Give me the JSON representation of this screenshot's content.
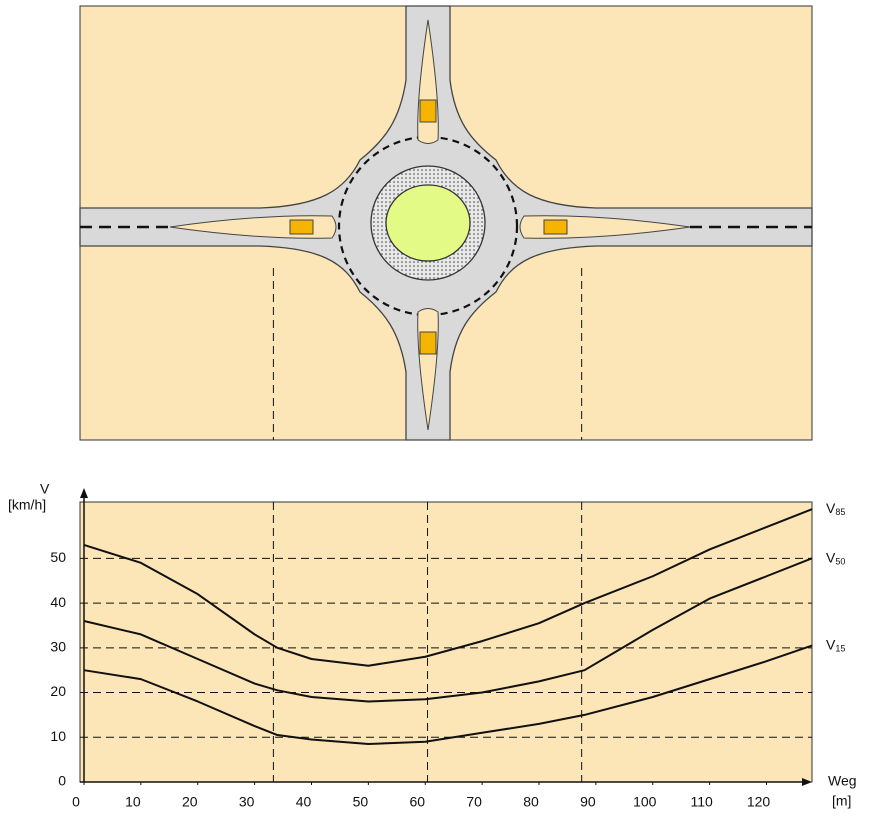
{
  "chart_data": {
    "type": "line",
    "y_label": "V",
    "y_unit": "[km/h]",
    "x_label": "Weg",
    "x_unit": "[m]",
    "x": [
      0,
      10,
      20,
      30,
      34,
      40,
      50,
      60,
      70,
      80,
      88,
      100,
      110,
      120,
      128
    ],
    "series": [
      {
        "name": "V85",
        "color": "#111111",
        "values": [
          53,
          49,
          42,
          33,
          30,
          27.5,
          26,
          28,
          31.5,
          35.5,
          40,
          46,
          52,
          57,
          61
        ]
      },
      {
        "name": "V50",
        "color": "#111111",
        "values": [
          36,
          33,
          27.5,
          22,
          20.5,
          19,
          18,
          18.5,
          20,
          22.5,
          25,
          34,
          41,
          46,
          50
        ]
      },
      {
        "name": "V15",
        "color": "#111111",
        "values": [
          25,
          23,
          18,
          12.5,
          10.5,
          9.5,
          8.5,
          9,
          11,
          13,
          15,
          19,
          23,
          27,
          30.5
        ]
      }
    ],
    "xlim": [
      0,
      128
    ],
    "ylim": [
      0,
      62.6
    ],
    "xticks": [
      0,
      10,
      20,
      30,
      40,
      50,
      60,
      70,
      80,
      90,
      100,
      110,
      120
    ],
    "yticks": [
      0,
      10,
      20,
      30,
      40,
      50
    ],
    "grid": true,
    "reference_x": [
      33.3,
      60.4,
      87.5
    ]
  }
}
